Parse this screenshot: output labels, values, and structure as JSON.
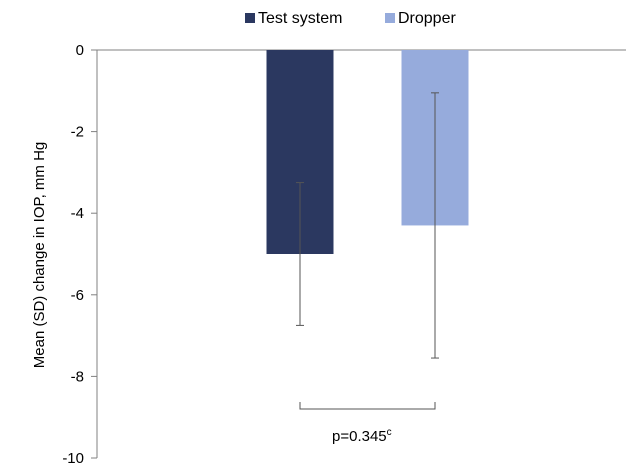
{
  "chart_data": {
    "type": "bar",
    "categories": [
      "Test system",
      "Dropper"
    ],
    "series": [
      {
        "name": "Test system",
        "value": -5.0,
        "sd": 1.75,
        "color": "#2b3860"
      },
      {
        "name": "Dropper",
        "value": -4.3,
        "sd": 3.25,
        "color": "#96abdc"
      }
    ],
    "ylabel": "Mean (SD) change in IOP, mm Hg",
    "ylim": [
      -10,
      0
    ],
    "yticks": [
      0,
      -2,
      -4,
      -6,
      -8,
      -10
    ],
    "ytick_labels": [
      "0",
      "-2",
      "-4",
      "-6",
      "-8",
      "-10"
    ],
    "grid": false,
    "legend_position": "top-center",
    "annotation": {
      "text": "p=0.345",
      "superscript": "c"
    }
  }
}
